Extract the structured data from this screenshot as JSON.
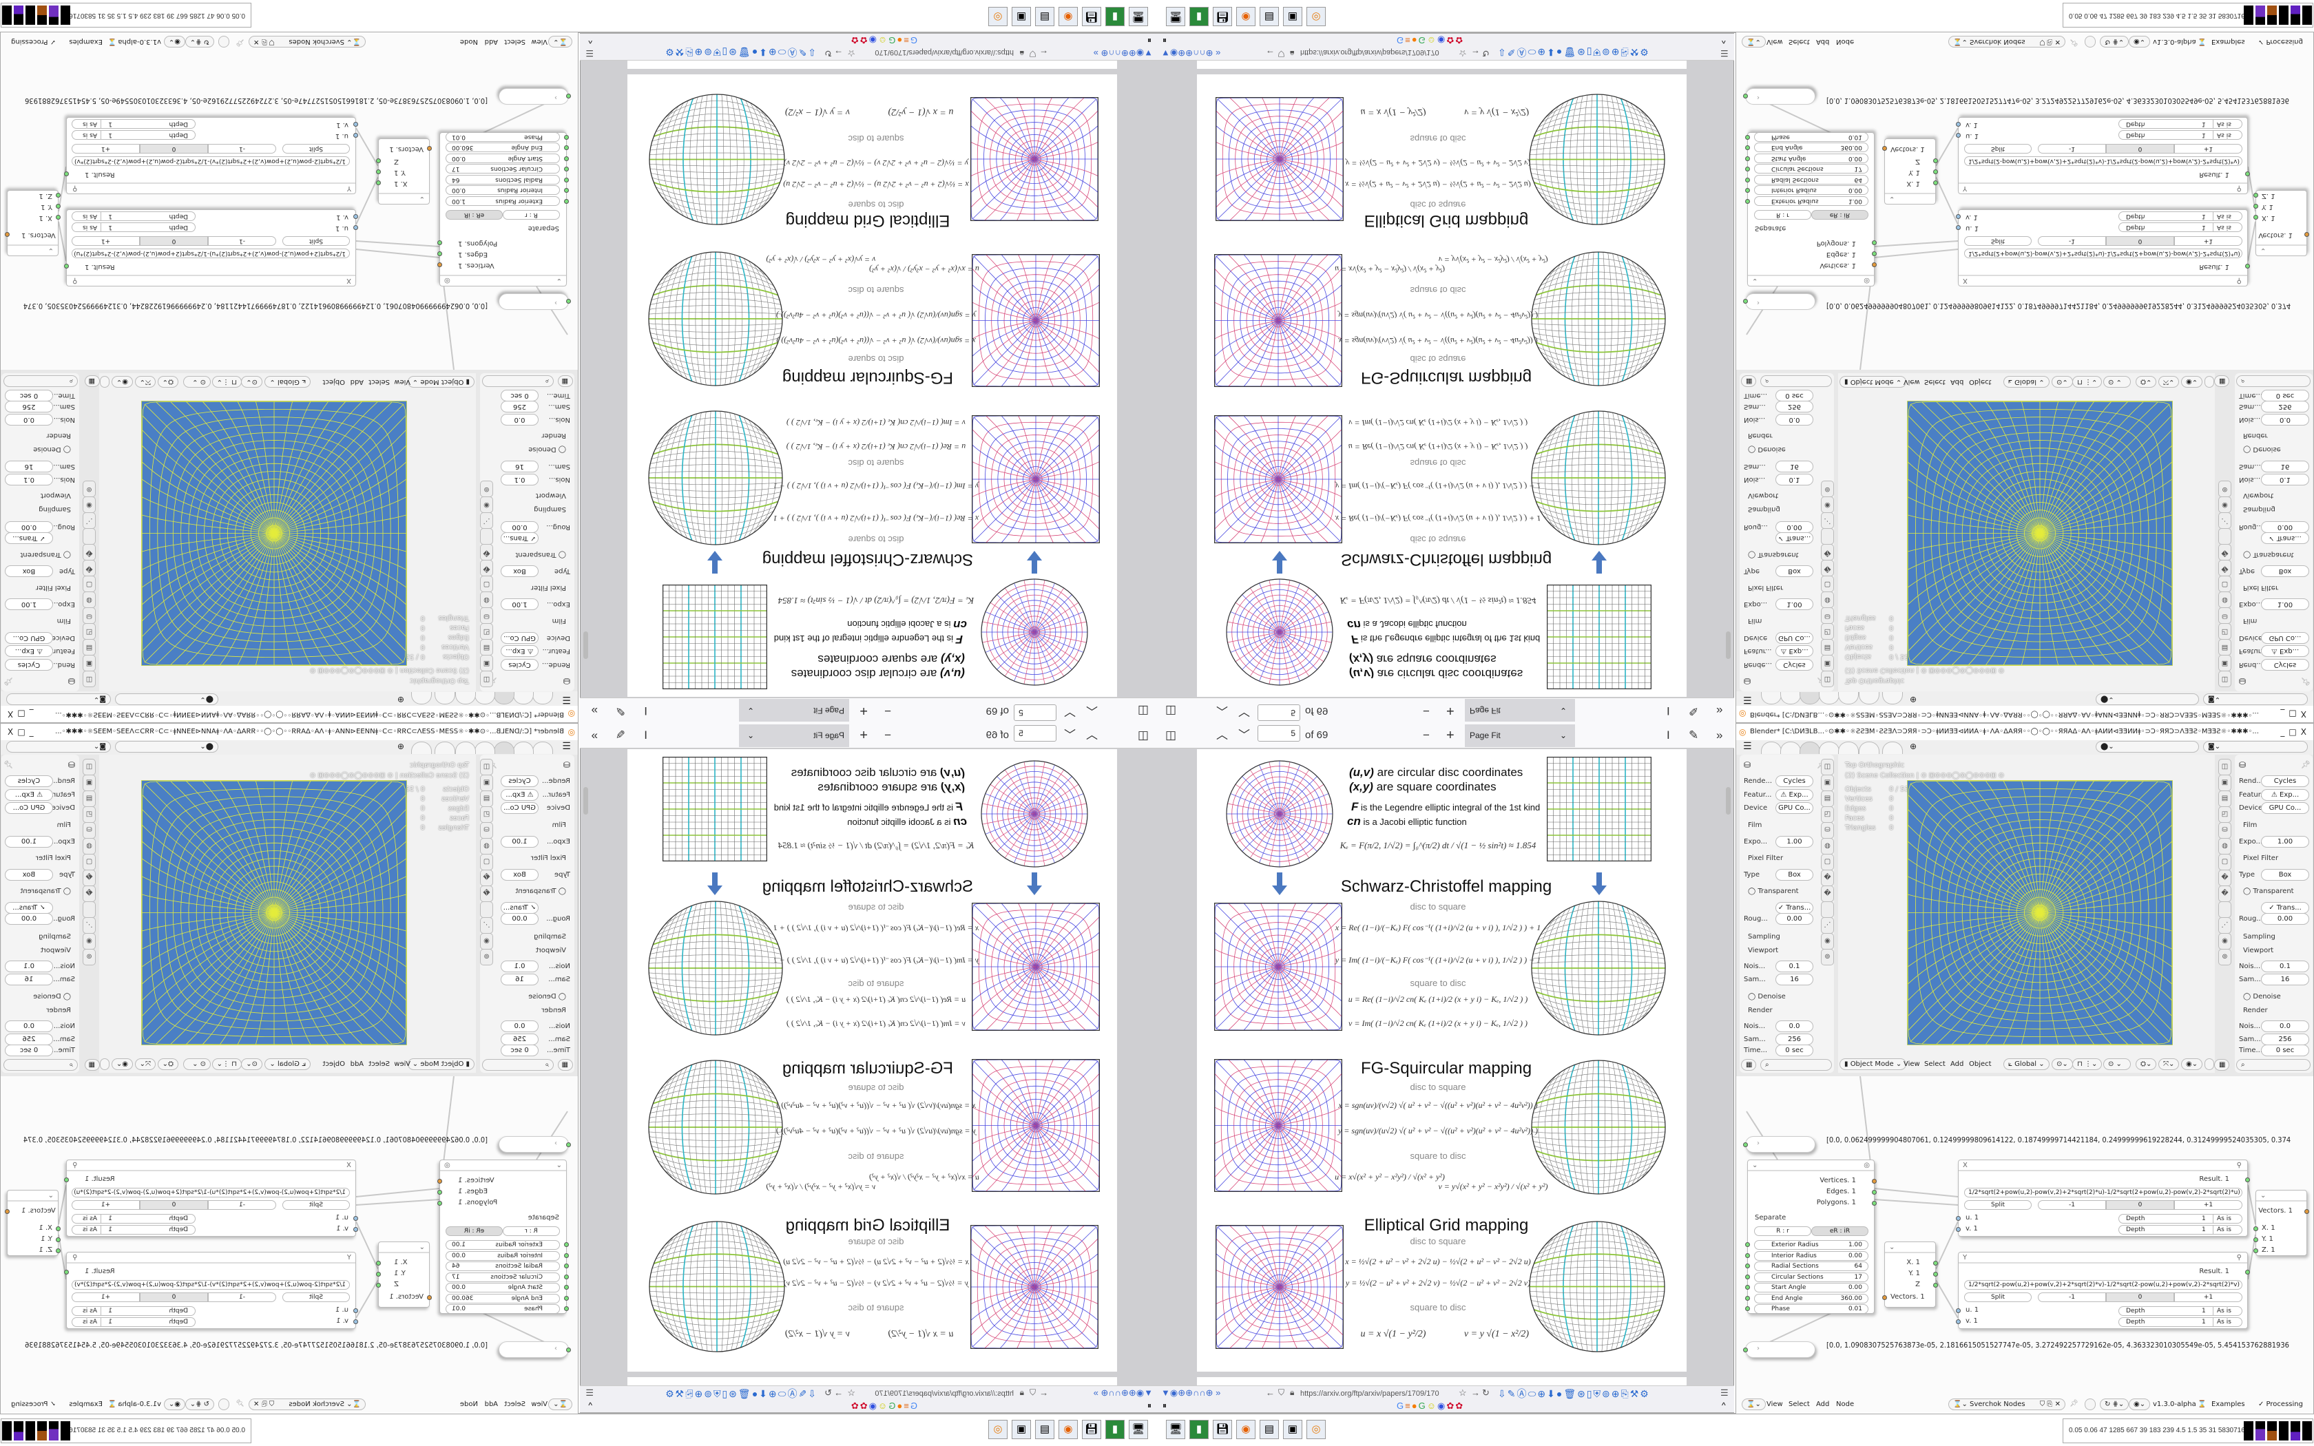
{
  "colors": {
    "viewport_bg": "#4a7fc5",
    "viewport_mesh": "#e4ec3c",
    "disc_red": "#d84a7a",
    "disc_blue": "#4848e0",
    "grid_green": "#8cc43a",
    "grid_teal": "#2ab4c4",
    "grid_gray": "#555555",
    "arrow": "#4a78c0",
    "socket_green": "#7ce07c",
    "socket_orange": "#e39a3c"
  },
  "pdf": {
    "toolbar": {
      "sidebar_icon": "sidebar-toggle-icon",
      "prev_icon": "chevron-up-icon",
      "next_icon": "chevron-down-icon",
      "page_number": "5",
      "page_count": "of 69",
      "zoom_out": "−",
      "zoom_in": "+",
      "zoom_value": "Page Fit",
      "text_select_icon": "text-cursor-icon",
      "draw_icon": "pen-icon",
      "more_icon": "double-chevron-icon"
    },
    "page": {
      "legend": [
        "(u,v)",
        "are circular disc coordinates",
        "(x,y)",
        "are square coordinates",
        "F",
        "is the Legendre elliptic integral of the 1st kind",
        "cn",
        "is a Jacobi elliptic function"
      ],
      "ke_formula": "Kₑ = F(π/2, 1/√2) = ∫₀^(π/2) dt / √(1 − ½ sin²t) ≈ 1.854",
      "sections": [
        {
          "title": "Schwarz-Christoffel mapping",
          "disc_to_square": "disc to square",
          "square_to_disc": "square to disc",
          "eq": [
            "x = Re( (1−i)/(−Kₑ) F( cos⁻¹( (1+i)/√2 (u + v i) ), 1/√2 ) ) + 1",
            "y = Im( (1−i)/(−Kₑ) F( cos⁻¹( (1+i)/√2 (u + v i) ), 1/√2 ) ) − 1",
            "u = Re( (1−i)/√2 cn( Kₑ (1+i)/2 (x + y i) − Kₑ, 1/√2 ) )",
            "v = Im( (1−i)/√2 cn( Kₑ (1+i)/2 (x + y i) − Kₑ, 1/√2 ) )"
          ]
        },
        {
          "title": "FG-Squircular mapping",
          "disc_to_square": "disc to square",
          "square_to_disc": "square to disc",
          "eq": [
            "x = sgn(uv)/(v√2) √( u² + v² − √((u² + v²)(u² + v² − 4u²v²)) )",
            "y = sgn(uv)/(u√2) √( u² + v² − √((u² + v²)(u² + v² − 4u²v²)) )",
            "u = x√(x² + y² − x²y²) / √(x² + y²)",
            "v = y√(x² + y² − x²y²) / √(x² + y²)"
          ]
        },
        {
          "title": "Elliptical Grid mapping",
          "disc_to_square": "disc to square",
          "square_to_disc": "square to disc",
          "eq": [
            "x = ½√(2 + u² − v² + 2√2 u) − ½√(2 + u² − v² − 2√2 u)",
            "y = ½√(2 − u² + v² + 2√2 v) − ½√(2 − u² + v² − 2√2 v)",
            "u = x √(1 − y²/2)",
            "v = y √(1 − x²/2)"
          ]
        }
      ]
    },
    "browser": {
      "url": "https://arxiv.org/ftp/arxiv/papers/1709/170",
      "bookmark_icons": [
        "google-icon",
        "stackoverflow-icon",
        "blogger-icon",
        "google-icon",
        "smiley-icon",
        "chat-icon",
        "flower-icon",
        "flower-icon"
      ]
    }
  },
  "taskbar": {
    "apps": [
      "remote-desktop-icon",
      "phone-icon",
      "floppy-icon",
      "firefox-icon",
      "notepad-icon",
      "window-icon",
      "blender-icon"
    ],
    "stats": "0.05 0.06  47  1285 667  39  183  239  4.5  1.5  35  31  58307169"
  },
  "blender": {
    "title": "Blender* [C:\\DИƎLB...◦⊙✱✱◦☼ƧƧƎM◦ƧƧƎΛ⊃ƆЯЯ◦⊃Ɔ◦ǂИИƎƎ⊲ИИΑ◦ǂ◦ΛΑ◦ΔΑЯЯ◦◦◯◦◯◦◦ЯЯΑΔ◦ΑΛ◦ǂΑИИ⊲ƎƎИИǂ◦⊃Ɔ◦ЯЯƆ⊃ΛƎƎƧ◦MƎƎƧ☼◦✱✱✱◦...",
    "window_controls": [
      "_",
      "□",
      "X"
    ],
    "props_left": [
      {
        "label": "Rende...",
        "value": "Cycles"
      },
      {
        "label": "Featur...",
        "value": "⚠ Exp..."
      },
      {
        "label": "Device",
        "value": "GPU Co..."
      },
      {
        "header": "Film"
      },
      {
        "label": "Expo...",
        "value": "1.00"
      },
      {
        "header": "Pixel Filter"
      },
      {
        "label": "Type",
        "value": "Box"
      },
      {
        "header": "◯ Transparent"
      },
      {
        "label": "",
        "value": "✓ Trans..."
      },
      {
        "label": "Roug...",
        "value": "0.00"
      },
      {
        "header": "Sampling"
      },
      {
        "header": "Viewport"
      },
      {
        "label": "Nois...",
        "value": "0.1"
      },
      {
        "label": "Sam...",
        "value": "16"
      },
      {
        "header": "◯ Denoise"
      },
      {
        "header": "Render"
      },
      {
        "label": "Nois...",
        "value": "0.0"
      },
      {
        "label": "Sam...",
        "value": "256"
      },
      {
        "label": "Time...",
        "value": "0 sec"
      }
    ],
    "props_right": [
      {
        "label": "Rend...",
        "value": "Cycles"
      },
      {
        "label": "Featur...",
        "value": "⚠ Exp..."
      },
      {
        "label": "Device",
        "value": "GPU Co..."
      },
      {
        "header": "Film"
      },
      {
        "label": "Expo...",
        "value": "1.00"
      },
      {
        "header": "Pixel Filter"
      },
      {
        "label": "Type",
        "value": "Box"
      },
      {
        "header": "◯ Transparent"
      },
      {
        "label": "",
        "value": "✓ Trans..."
      },
      {
        "label": "Roug...",
        "value": "0.00"
      },
      {
        "header": "Sampling"
      },
      {
        "header": "Viewport"
      },
      {
        "label": "Nois...",
        "value": "0.1"
      },
      {
        "label": "Sam...",
        "value": "16"
      },
      {
        "header": "◯ Denoise"
      },
      {
        "header": "Render"
      },
      {
        "label": "Nois...",
        "value": "0.0"
      },
      {
        "label": "Sam...",
        "value": "256"
      },
      {
        "label": "Time...",
        "value": "0 sec"
      }
    ],
    "viewport": {
      "view_name": "Top Orthographic",
      "collection": "(2) Scene Collection | ⊙ ⊞⊙⊙⊙◯⊙◯⊙⊙⊙⊞ ⊙",
      "stats": [
        {
          "label": "Objects",
          "value": "0 / 53"
        },
        {
          "label": "Vertices",
          "value": "0"
        },
        {
          "label": "Edges",
          "value": "0"
        },
        {
          "label": "Faces",
          "value": "0"
        },
        {
          "label": "Triangles",
          "value": "0"
        }
      ],
      "mode": "Object Mode",
      "menus": [
        "View",
        "Select",
        "Add",
        "Object"
      ],
      "orientation": "Global"
    },
    "node_editor": {
      "menus": [
        "View",
        "Select",
        "Add",
        "Node"
      ],
      "tree_name": "Sverchok Nodes",
      "version": "v1.3.0-alpha",
      "examples": "Examples",
      "processing": "✓ Processing",
      "viewer_text_1": "[0.0, 0.062499999904807061, 0.12499999809614122, 0.18749999714421184, 0.24999999619228244, 0.31249999524035305, 0.374",
      "viewer_text_2": "[0.0, 1.0908307525763873e-05, 2.1816615051527747e-05, 3.272492257729162e-05, 4.363323010305549e-05, 5.454153762881936",
      "circle_node": {
        "outputs": [
          "Vertices. 1",
          "Edges. 1",
          "Polygons. 1"
        ],
        "separate": "Separate",
        "mode_a": "R : r",
        "mode_b": "eR : iR",
        "params": [
          {
            "label": "Exterior Radius",
            "value": "1.00"
          },
          {
            "label": "Interior Radius",
            "value": "0.00"
          },
          {
            "label": "Radial Sections",
            "value": "64"
          },
          {
            "label": "Circular Sections",
            "value": "17"
          },
          {
            "label": "Start Angle",
            "value": "0.00"
          },
          {
            "label": "End Angle",
            "value": "360.00"
          },
          {
            "label": "Phase",
            "value": "0.01"
          }
        ]
      },
      "split_node": {
        "outputs": [
          "X. 1",
          "Y. 1",
          "Z"
        ],
        "input": "Vectors. 1"
      },
      "formula_nodes": [
        {
          "title": "X",
          "result": "Result. 1",
          "formula": "1/2*sqrt(2+pow(u,2)-pow(v,2)+2*sqrt(2)*u)-1/2*sqrt(2+pow(u,2)-pow(v,2)-2*sqrt(2)*u)",
          "split": "Split",
          "minus": "-1",
          "zero": "0",
          "plus": "+1",
          "inputs": [
            {
              "name": "u. 1",
              "depth_label": "Depth",
              "depth": "1",
              "mode": "As is"
            },
            {
              "name": "v. 1",
              "depth_label": "Depth",
              "depth": "1",
              "mode": "As is"
            }
          ]
        },
        {
          "title": "Y",
          "result": "Result. 1",
          "formula": "1/2*sqrt(2-pow(u,2)+pow(v,2)+2*sqrt(2)*v)-1/2*sqrt(2-pow(u,2)+pow(v,2)-2*sqrt(2)*v)",
          "split": "Split",
          "minus": "-1",
          "zero": "0",
          "plus": "+1",
          "inputs": [
            {
              "name": "u. 1",
              "depth_label": "Depth",
              "depth": "1",
              "mode": "As is"
            },
            {
              "name": "v. 1",
              "depth_label": "Depth",
              "depth": "1",
              "mode": "As is"
            }
          ]
        }
      ],
      "vector_in_node": {
        "output": "Vectors. 1",
        "inputs": [
          "X. 1",
          "Y. 1",
          "Z. 1"
        ]
      }
    }
  }
}
